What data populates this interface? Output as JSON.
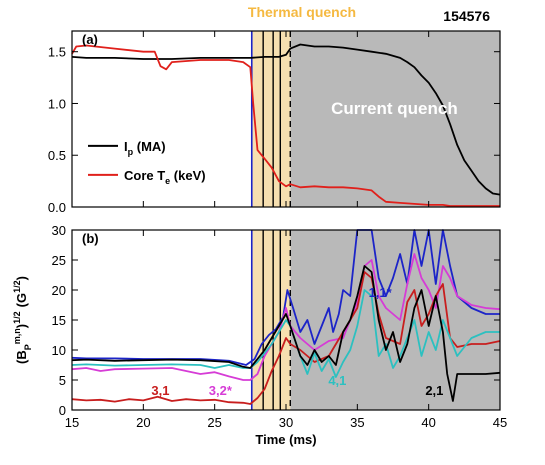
{
  "header": {
    "thermal_quench": "Thermal quench",
    "shot_number": "154576"
  },
  "colors": {
    "ip": "#000000",
    "te": "#e0201b",
    "m11": "#1c24c8",
    "m32": "#d63cd6",
    "m31": "#c81e1e",
    "m41": "#2cc0c0",
    "m21": "#000000",
    "shade": "#b9b9b9",
    "tq_band": "#f6dfb0",
    "tq_label": "#f5b941"
  },
  "chart_data": [
    {
      "type": "line",
      "panel_label": "(a)",
      "title": "",
      "xlim": [
        15,
        45
      ],
      "ylim": [
        0,
        1.7
      ],
      "y_ticks": [
        "0.0",
        "0.5",
        "1.0",
        "1.5"
      ],
      "y_tick_values": [
        0,
        0.5,
        1.0,
        1.5
      ],
      "grid": false,
      "annotation": "Current quench",
      "legend": {
        "placement": "bottom-left",
        "entries": [
          {
            "key": "ip",
            "label_main": "I",
            "label_sub": "p",
            "label_tail": " (MA)"
          },
          {
            "key": "te",
            "label_main": "Core T",
            "label_sub": "e",
            "label_tail": " (keV)"
          }
        ]
      },
      "series": [
        {
          "key": "ip",
          "name": "Ip (MA)",
          "x": [
            15,
            16,
            18,
            20,
            22,
            24,
            26,
            27.5,
            28.5,
            29.5,
            30.0,
            30.3,
            31,
            32,
            33,
            34,
            35,
            36,
            37,
            38,
            38.5,
            39,
            39.5,
            40,
            40.5,
            41,
            41.5,
            42,
            42.5,
            43,
            43.5,
            44,
            44.5,
            45
          ],
          "y": [
            1.45,
            1.44,
            1.44,
            1.43,
            1.43,
            1.44,
            1.44,
            1.44,
            1.45,
            1.45,
            1.47,
            1.53,
            1.57,
            1.55,
            1.55,
            1.54,
            1.52,
            1.5,
            1.48,
            1.44,
            1.4,
            1.35,
            1.27,
            1.2,
            1.1,
            0.98,
            0.8,
            0.6,
            0.45,
            0.35,
            0.25,
            0.18,
            0.13,
            0.12
          ]
        },
        {
          "key": "te",
          "name": "Core Te (keV)",
          "x": [
            15,
            15.3,
            16,
            18,
            20,
            20.8,
            21.2,
            21.6,
            22,
            24,
            26,
            27,
            27.5,
            27.7,
            28,
            28.3,
            28.6,
            29,
            29.5,
            30,
            30.3,
            31,
            32,
            33,
            34,
            35,
            35.5,
            36,
            36.5,
            37,
            38,
            39,
            40,
            41,
            41.5,
            42,
            43,
            45
          ],
          "y": [
            1.48,
            1.55,
            1.56,
            1.53,
            1.5,
            1.5,
            1.36,
            1.33,
            1.4,
            1.42,
            1.42,
            1.4,
            1.35,
            1.0,
            0.55,
            0.5,
            0.45,
            0.38,
            0.25,
            0.2,
            0.22,
            0.19,
            0.2,
            0.19,
            0.19,
            0.18,
            0.17,
            0.16,
            0.1,
            0.05,
            0.04,
            0.03,
            0.02,
            0.02,
            0.01,
            0.01,
            0.01,
            0.01
          ]
        }
      ]
    },
    {
      "type": "line",
      "panel_label": "(b)",
      "title": "",
      "xlabel": "Time (ms)",
      "ylabel_main": "(B",
      "ylabel_sup": "m,n",
      "ylabel_sub": "P",
      "ylabel_tail": ")",
      "ylabel_exp": "1/2",
      "ylabel_unit_main": "(G",
      "ylabel_unit_exp": "1/2",
      "ylabel_unit_tail": ")",
      "xlim": [
        15,
        45
      ],
      "ylim": [
        0,
        30
      ],
      "x_ticks": [
        "15",
        "20",
        "25",
        "30",
        "35",
        "40",
        "45"
      ],
      "x_tick_values": [
        15,
        20,
        25,
        30,
        35,
        40,
        45
      ],
      "y_ticks": [
        "0",
        "5",
        "10",
        "15",
        "20",
        "25",
        "30"
      ],
      "y_tick_values": [
        0,
        5,
        10,
        15,
        20,
        25,
        30
      ],
      "grid": false,
      "series": [
        {
          "key": "m11",
          "name": "1,1*",
          "label_at": [
            36.6,
            18.8
          ],
          "x": [
            15,
            16,
            18,
            20,
            22,
            24,
            26,
            27.2,
            27.8,
            28.3,
            28.8,
            29.3,
            29.8,
            30.1,
            30.5,
            31,
            31.5,
            32,
            32.5,
            33,
            33.3,
            33.7,
            34,
            34.5,
            35,
            35.5,
            36,
            36.5,
            37,
            37.5,
            38,
            38.5,
            39,
            39.5,
            40,
            40.5,
            41,
            41.5,
            42,
            43,
            44,
            45
          ],
          "y": [
            8.7,
            8.6,
            8.6,
            8.5,
            8.5,
            8.5,
            8.2,
            7.5,
            8.5,
            11.0,
            12.5,
            13.5,
            15.5,
            20.0,
            17.0,
            13.0,
            15.0,
            11.0,
            14.0,
            17.0,
            13.0,
            16.0,
            20.0,
            19.0,
            30.0,
            30.0,
            30.0,
            22.0,
            19.0,
            22.0,
            26.0,
            21.0,
            30.0,
            24.0,
            30.0,
            21.0,
            30.0,
            24.0,
            19.0,
            17.0,
            16.0,
            16.0
          ]
        },
        {
          "key": "m32",
          "name": "3,2*",
          "label_at": [
            25.4,
            2.5
          ],
          "x": [
            15,
            16,
            17,
            18,
            20,
            22,
            23,
            24,
            25,
            26,
            27,
            27.5,
            28,
            28.5,
            29,
            29.5,
            30,
            30.3,
            31,
            32,
            33,
            34,
            35,
            35.5,
            36,
            36.5,
            37,
            38,
            38.5,
            39,
            39.5,
            40,
            40.5,
            41,
            41.5,
            42,
            43,
            44,
            45
          ],
          "y": [
            6.8,
            7.0,
            6.5,
            6.8,
            6.9,
            7.0,
            6.5,
            6.0,
            6.3,
            5.6,
            5.0,
            5.0,
            6.0,
            9.0,
            11.0,
            13.0,
            17.0,
            14.0,
            12.0,
            10.0,
            11.5,
            12.0,
            18.0,
            24.0,
            25.0,
            19.0,
            17.0,
            15.0,
            21.0,
            26.0,
            22.0,
            20.0,
            17.0,
            24.0,
            22.0,
            19.0,
            17.5,
            17.0,
            16.8
          ]
        },
        {
          "key": "m31",
          "name": "3,1",
          "label_at": [
            21.2,
            2.5
          ],
          "x": [
            15,
            16,
            17,
            18,
            19,
            20,
            21,
            22,
            23,
            24,
            25,
            26,
            27,
            27.5,
            28,
            28.5,
            29,
            29.5,
            30,
            30.3,
            31,
            32,
            33,
            34,
            35,
            35.5,
            36,
            36.5,
            37,
            38,
            38.5,
            39,
            39.5,
            40,
            40.5,
            41,
            41.5,
            42,
            43,
            44,
            45
          ],
          "y": [
            1.8,
            1.6,
            1.7,
            1.4,
            1.8,
            1.6,
            2.2,
            1.5,
            1.8,
            1.6,
            1.7,
            1.3,
            1.2,
            1.0,
            2.0,
            3.5,
            6.5,
            9.0,
            12.0,
            11.0,
            10.0,
            8.0,
            9.0,
            13.0,
            17.0,
            23.0,
            22.0,
            16.0,
            12.0,
            11.0,
            18.0,
            20.0,
            14.0,
            16.0,
            19.0,
            21.0,
            12.0,
            10.5,
            11.0,
            11.0,
            11.5
          ]
        },
        {
          "key": "m41",
          "name": "4,1",
          "label_at": [
            33.6,
            4.2
          ],
          "x": [
            15,
            16,
            18,
            20,
            22,
            24,
            25,
            26,
            27,
            27.5,
            28,
            28.5,
            29,
            29.5,
            30,
            30.3,
            31,
            31.5,
            32,
            32.5,
            33,
            33.5,
            34,
            34.5,
            35,
            35.5,
            36,
            36.5,
            37,
            37.5,
            38,
            38.5,
            39,
            39.5,
            40,
            40.5,
            41,
            41.5,
            42,
            43,
            44,
            45
          ],
          "y": [
            7.5,
            7.6,
            7.4,
            7.5,
            7.6,
            7.5,
            7.0,
            7.5,
            7.0,
            7.0,
            8.0,
            9.5,
            11.0,
            13.0,
            15.0,
            14.0,
            9.0,
            6.0,
            9.5,
            6.5,
            8.5,
            5.5,
            8.0,
            10.0,
            14.0,
            20.0,
            19.0,
            9.0,
            11.0,
            7.0,
            9.0,
            12.0,
            15.0,
            9.0,
            13.0,
            10.0,
            15.0,
            12.0,
            9.0,
            12.0,
            13.0,
            13.0
          ]
        },
        {
          "key": "m21",
          "name": "2,1",
          "label_at": [
            40.4,
            2.5
          ],
          "x": [
            15,
            16,
            18,
            20,
            22,
            24,
            26,
            27,
            27.5,
            28,
            28.5,
            29,
            29.5,
            30,
            30.3,
            31,
            31.5,
            32,
            32.5,
            33,
            33.5,
            34,
            34.5,
            35,
            35.5,
            36,
            36.5,
            37,
            37.5,
            38,
            38.5,
            39,
            39.5,
            40,
            40.5,
            41,
            41.3,
            41.7,
            42,
            43,
            44,
            45
          ],
          "y": [
            8.3,
            8.4,
            8.2,
            8.3,
            8.4,
            8.3,
            8.0,
            7.2,
            7.0,
            8.5,
            10.0,
            12.0,
            14.0,
            16.0,
            14.0,
            9.0,
            7.5,
            10.0,
            8.0,
            9.0,
            7.5,
            13.0,
            15.0,
            19.0,
            24.0,
            23.0,
            15.0,
            10.0,
            13.0,
            8.0,
            11.0,
            17.0,
            20.0,
            14.0,
            19.0,
            13.0,
            6.0,
            1.5,
            6.0,
            6.0,
            6.0,
            6.2
          ]
        }
      ]
    }
  ],
  "event_times": {
    "tq_start": 27.6,
    "tq_lines": [
      28.4,
      29.1,
      29.6
    ],
    "tq_end": 30.3,
    "axis_max": 45
  }
}
